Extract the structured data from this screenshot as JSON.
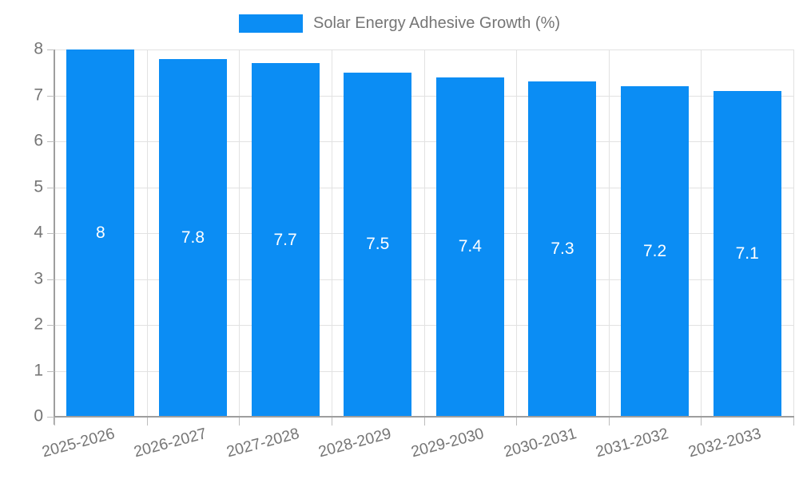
{
  "legend": {
    "label": "Solar Energy Adhesive Growth (%)"
  },
  "chart_data": {
    "type": "bar",
    "title": "",
    "xlabel": "",
    "ylabel": "",
    "categories": [
      "2025-2026",
      "2026-2027",
      "2027-2028",
      "2028-2029",
      "2029-2030",
      "2030-2031",
      "2031-2032",
      "2032-2033"
    ],
    "series": [
      {
        "name": "Solar Energy Adhesive Growth (%)",
        "values": [
          8,
          7.8,
          7.7,
          7.5,
          7.4,
          7.3,
          7.2,
          7.1
        ]
      }
    ],
    "value_labels": [
      "8",
      "7.8",
      "7.7",
      "7.5",
      "7.4",
      "7.3",
      "7.2",
      "7.1"
    ],
    "ylim": [
      0,
      8
    ],
    "yticks": [
      0,
      1,
      2,
      3,
      4,
      5,
      6,
      7,
      8
    ],
    "grid": true,
    "legend_position": "top-center",
    "bar_color": "#0b8df4",
    "value_label_color": "#ffffff",
    "axis_text_color": "#757575"
  }
}
